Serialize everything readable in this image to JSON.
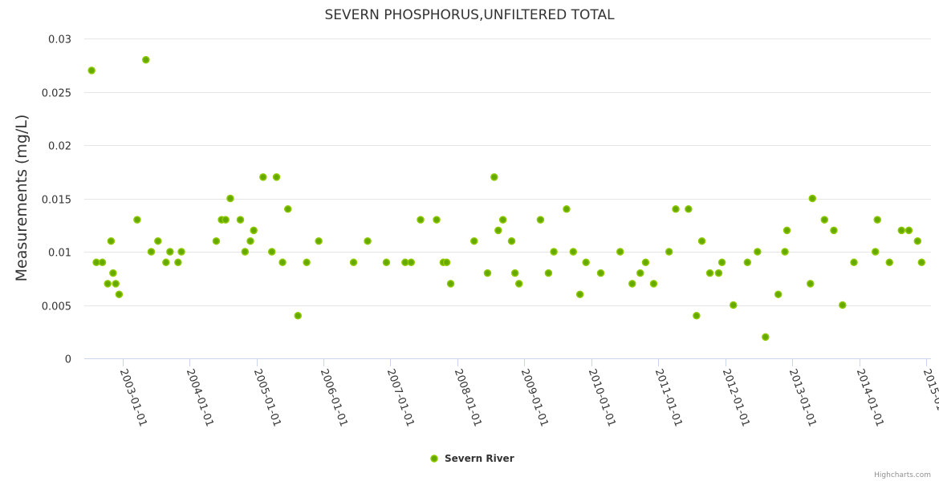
{
  "chart_data": {
    "type": "scatter",
    "title": "SEVERN PHOSPHORUS,UNFILTERED TOTAL",
    "ylabel": "Measurements (mg/L)",
    "xlabel": "",
    "ylim": [
      0,
      0.03
    ],
    "xlim": [
      2002.43,
      2015.07
    ],
    "yticks": [
      0,
      0.005,
      0.01,
      0.015,
      0.02,
      0.025,
      0.03
    ],
    "ytick_labels": [
      "0",
      "0.005",
      "0.01",
      "0.015",
      "0.02",
      "0.025",
      "0.03"
    ],
    "xticks": [
      2003,
      2004,
      2005,
      2006,
      2007,
      2008,
      2009,
      2010,
      2011,
      2012,
      2013,
      2014,
      2015
    ],
    "xtick_labels": [
      "2003-01-01",
      "2004-01-01",
      "2005-01-01",
      "2006-01-01",
      "2007-01-01",
      "2008-01-01",
      "2009-01-01",
      "2010-01-01",
      "2011-01-01",
      "2012-01-01",
      "2013-01-01",
      "2014-01-01",
      "2015-01-01"
    ],
    "grid": true,
    "legend_position": "bottom-center",
    "series": [
      {
        "name": "Severn River",
        "color": "#66aa00",
        "points": [
          [
            2002.54,
            0.027
          ],
          [
            2002.61,
            0.009
          ],
          [
            2002.7,
            0.009
          ],
          [
            2002.78,
            0.007
          ],
          [
            2002.83,
            0.011
          ],
          [
            2002.86,
            0.008
          ],
          [
            2002.9,
            0.007
          ],
          [
            2002.95,
            0.006
          ],
          [
            2003.22,
            0.013
          ],
          [
            2003.35,
            0.028
          ],
          [
            2003.43,
            0.01
          ],
          [
            2003.53,
            0.011
          ],
          [
            2003.65,
            0.009
          ],
          [
            2003.71,
            0.01
          ],
          [
            2003.83,
            0.009
          ],
          [
            2003.88,
            0.01
          ],
          [
            2004.4,
            0.011
          ],
          [
            2004.48,
            0.013
          ],
          [
            2004.54,
            0.013
          ],
          [
            2004.61,
            0.015
          ],
          [
            2004.76,
            0.013
          ],
          [
            2004.83,
            0.01
          ],
          [
            2004.91,
            0.011
          ],
          [
            2004.96,
            0.012
          ],
          [
            2005.1,
            0.017
          ],
          [
            2005.23,
            0.01
          ],
          [
            2005.3,
            0.017
          ],
          [
            2005.39,
            0.009
          ],
          [
            2005.47,
            0.014
          ],
          [
            2005.62,
            0.004
          ],
          [
            2005.75,
            0.009
          ],
          [
            2005.93,
            0.011
          ],
          [
            2006.45,
            0.009
          ],
          [
            2006.66,
            0.011
          ],
          [
            2006.94,
            0.009
          ],
          [
            2007.22,
            0.009
          ],
          [
            2007.31,
            0.009
          ],
          [
            2007.45,
            0.013
          ],
          [
            2007.69,
            0.013
          ],
          [
            2007.79,
            0.009
          ],
          [
            2007.84,
            0.009
          ],
          [
            2007.9,
            0.007
          ],
          [
            2008.25,
            0.011
          ],
          [
            2008.45,
            0.008
          ],
          [
            2008.55,
            0.017
          ],
          [
            2008.61,
            0.012
          ],
          [
            2008.68,
            0.013
          ],
          [
            2008.81,
            0.011
          ],
          [
            2008.86,
            0.008
          ],
          [
            2008.92,
            0.007
          ],
          [
            2009.24,
            0.013
          ],
          [
            2009.36,
            0.008
          ],
          [
            2009.44,
            0.01
          ],
          [
            2009.63,
            0.014
          ],
          [
            2009.73,
            0.01
          ],
          [
            2009.83,
            0.006
          ],
          [
            2009.92,
            0.009
          ],
          [
            2010.14,
            0.008
          ],
          [
            2010.43,
            0.01
          ],
          [
            2010.61,
            0.007
          ],
          [
            2010.73,
            0.008
          ],
          [
            2010.81,
            0.009
          ],
          [
            2010.93,
            0.007
          ],
          [
            2011.16,
            0.01
          ],
          [
            2011.26,
            0.014
          ],
          [
            2011.45,
            0.014
          ],
          [
            2011.57,
            0.004
          ],
          [
            2011.65,
            0.011
          ],
          [
            2011.77,
            0.008
          ],
          [
            2011.9,
            0.008
          ],
          [
            2011.95,
            0.009
          ],
          [
            2012.12,
            0.005
          ],
          [
            2012.33,
            0.009
          ],
          [
            2012.48,
            0.01
          ],
          [
            2012.6,
            0.002
          ],
          [
            2012.79,
            0.006
          ],
          [
            2012.89,
            0.01
          ],
          [
            2012.92,
            0.012
          ],
          [
            2013.27,
            0.007
          ],
          [
            2013.3,
            0.015
          ],
          [
            2013.48,
            0.013
          ],
          [
            2013.62,
            0.012
          ],
          [
            2013.75,
            0.005
          ],
          [
            2013.92,
            0.009
          ],
          [
            2014.24,
            0.01
          ],
          [
            2014.27,
            0.013
          ],
          [
            2014.45,
            0.009
          ],
          [
            2014.63,
            0.012
          ],
          [
            2014.74,
            0.012
          ],
          [
            2014.87,
            0.011
          ],
          [
            2014.93,
            0.009
          ]
        ]
      }
    ],
    "credits": "Highcharts.com"
  }
}
